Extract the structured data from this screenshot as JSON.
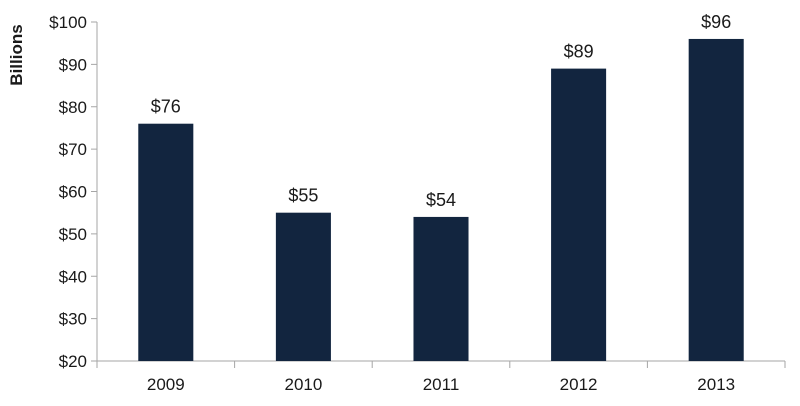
{
  "chart_data": {
    "type": "bar",
    "categories": [
      "2009",
      "2010",
      "2011",
      "2012",
      "2013"
    ],
    "values": [
      76,
      55,
      54,
      89,
      96
    ],
    "data_labels": [
      "$76",
      "$55",
      "$54",
      "$89",
      "$96"
    ],
    "title": "",
    "xlabel": "",
    "ylabel": "Billions",
    "ylim": [
      20,
      100
    ],
    "yticks": [
      20,
      30,
      40,
      50,
      60,
      70,
      80,
      90,
      100
    ],
    "ytick_labels": [
      "$20",
      "$30",
      "$40",
      "$50",
      "$60",
      "$70",
      "$80",
      "$90",
      "$100"
    ],
    "grid": false,
    "legend": "none",
    "colors": {
      "bar": "#12253f",
      "axis": "#a6a6a6"
    }
  }
}
